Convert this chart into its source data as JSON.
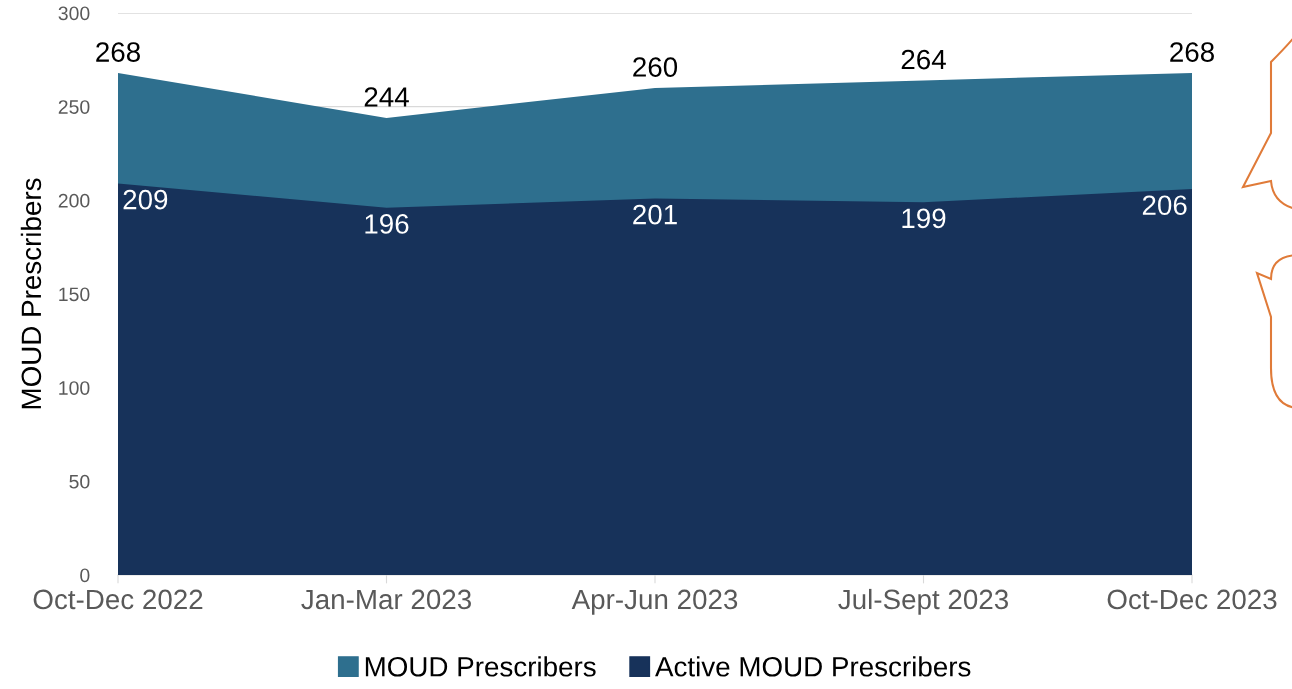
{
  "chart_data": {
    "type": "area",
    "ylabel": "MOUD Prescribers",
    "categories": [
      "Oct-Dec 2022",
      "Jan-Mar 2023",
      "Apr-Jun 2023",
      "Jul-Sept 2023",
      "Oct-Dec 2023"
    ],
    "series": [
      {
        "name": "MOUD Prescribers",
        "color": "#2e6f8e",
        "values": [
          268,
          244,
          260,
          264,
          268
        ]
      },
      {
        "name": "Active MOUD Prescribers",
        "color": "#17325a",
        "values": [
          209,
          196,
          201,
          199,
          206
        ]
      }
    ],
    "ylim": [
      0,
      300
    ],
    "yticks": [
      0,
      50,
      100,
      150,
      200,
      250,
      300
    ],
    "grid": "y",
    "legend": "bottom",
    "data_labels": true
  }
}
